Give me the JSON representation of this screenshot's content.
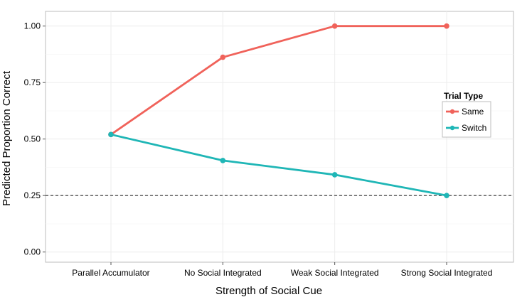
{
  "chart_data": {
    "type": "line",
    "categories": [
      "Parallel Accumulator",
      "No Social Integrated",
      "Weak Social Integrated",
      "Strong Social Integrated"
    ],
    "series": [
      {
        "name": "Same",
        "values": [
          0.52,
          0.862,
          1.0,
          1.0
        ],
        "color": "#f0625a"
      },
      {
        "name": "Switch",
        "values": [
          0.52,
          0.405,
          0.342,
          0.25
        ],
        "color": "#1fb6b6"
      }
    ],
    "xlabel": "Strength of Social Cue",
    "ylabel": "Predicted Proportion Correct",
    "ylim": [
      -0.045,
      1.065
    ],
    "yticks": [
      0.0,
      0.25,
      0.5,
      0.75,
      1.0
    ],
    "ytick_labels": [
      "0.00",
      "0.25",
      "0.50",
      "0.75",
      "1.00"
    ],
    "reference_line": {
      "y": 0.25,
      "style": "dashed",
      "color": "#333333"
    },
    "grid": true,
    "legend": {
      "title": "Trial Type",
      "placement": "right"
    }
  }
}
